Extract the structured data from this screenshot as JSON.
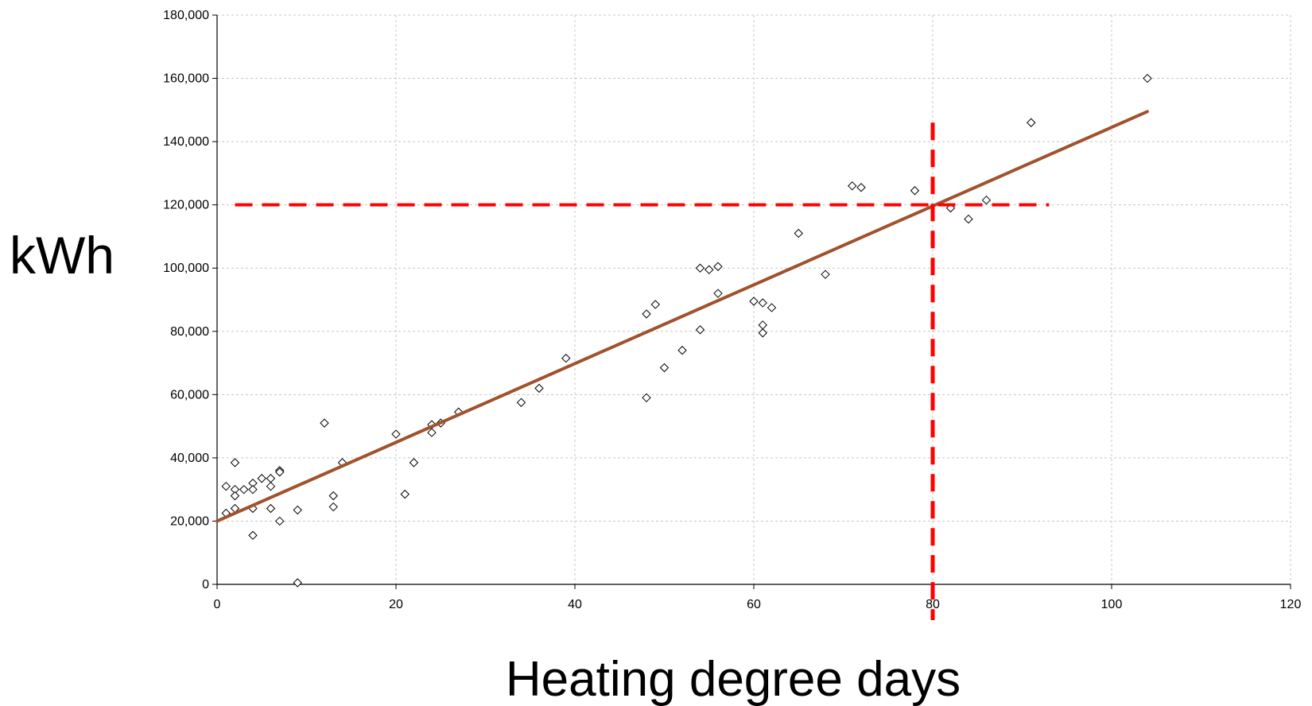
{
  "chart_data": {
    "type": "scatter",
    "title": "",
    "xlabel": "Heating degree days",
    "ylabel": "kWh",
    "xlim": [
      0,
      120
    ],
    "ylim": [
      0,
      180000
    ],
    "x_ticks": [
      0,
      20,
      40,
      60,
      80,
      100,
      120
    ],
    "x_tick_labels": [
      "0",
      "20",
      "40",
      "60",
      "80",
      "100",
      "120"
    ],
    "y_ticks": [
      0,
      20000,
      40000,
      60000,
      80000,
      100000,
      120000,
      140000,
      160000,
      180000
    ],
    "y_tick_labels": [
      "0",
      "20,000",
      "40,000",
      "60,000",
      "80,000",
      "100,000",
      "120,000",
      "140,000",
      "160,000",
      "180,000"
    ],
    "grid": true,
    "points": [
      {
        "x": 1,
        "y": 31000
      },
      {
        "x": 1,
        "y": 22500
      },
      {
        "x": 2,
        "y": 38500
      },
      {
        "x": 2,
        "y": 30000
      },
      {
        "x": 2,
        "y": 28000
      },
      {
        "x": 2,
        "y": 24000
      },
      {
        "x": 3,
        "y": 30000
      },
      {
        "x": 4,
        "y": 32000
      },
      {
        "x": 4,
        "y": 30000
      },
      {
        "x": 4,
        "y": 24000
      },
      {
        "x": 4,
        "y": 15500
      },
      {
        "x": 5,
        "y": 33500
      },
      {
        "x": 6,
        "y": 33500
      },
      {
        "x": 6,
        "y": 31000
      },
      {
        "x": 6,
        "y": 24000
      },
      {
        "x": 7,
        "y": 36000
      },
      {
        "x": 7,
        "y": 35500
      },
      {
        "x": 7,
        "y": 20000
      },
      {
        "x": 9,
        "y": 23500
      },
      {
        "x": 9,
        "y": 500
      },
      {
        "x": 12,
        "y": 51000
      },
      {
        "x": 13,
        "y": 28000
      },
      {
        "x": 13,
        "y": 24500
      },
      {
        "x": 14,
        "y": 38500
      },
      {
        "x": 20,
        "y": 47500
      },
      {
        "x": 21,
        "y": 28500
      },
      {
        "x": 22,
        "y": 38500
      },
      {
        "x": 24,
        "y": 50500
      },
      {
        "x": 24,
        "y": 48000
      },
      {
        "x": 25,
        "y": 51000
      },
      {
        "x": 27,
        "y": 54500
      },
      {
        "x": 34,
        "y": 57500
      },
      {
        "x": 36,
        "y": 62000
      },
      {
        "x": 39,
        "y": 71500
      },
      {
        "x": 48,
        "y": 85500
      },
      {
        "x": 48,
        "y": 59000
      },
      {
        "x": 49,
        "y": 88500
      },
      {
        "x": 50,
        "y": 68500
      },
      {
        "x": 52,
        "y": 74000
      },
      {
        "x": 54,
        "y": 100000
      },
      {
        "x": 54,
        "y": 80500
      },
      {
        "x": 55,
        "y": 99500
      },
      {
        "x": 56,
        "y": 100500
      },
      {
        "x": 56,
        "y": 92000
      },
      {
        "x": 60,
        "y": 89500
      },
      {
        "x": 61,
        "y": 89000
      },
      {
        "x": 61,
        "y": 82000
      },
      {
        "x": 61,
        "y": 79500
      },
      {
        "x": 62,
        "y": 87500
      },
      {
        "x": 65,
        "y": 111000
      },
      {
        "x": 68,
        "y": 98000
      },
      {
        "x": 71,
        "y": 126000
      },
      {
        "x": 72,
        "y": 125500
      },
      {
        "x": 78,
        "y": 124500
      },
      {
        "x": 82,
        "y": 119000
      },
      {
        "x": 84,
        "y": 115500
      },
      {
        "x": 86,
        "y": 121500
      },
      {
        "x": 91,
        "y": 146000
      },
      {
        "x": 104,
        "y": 160000
      }
    ],
    "trendline": {
      "x": [
        0,
        104
      ],
      "y": [
        20000,
        149500
      ],
      "color": "#a0522d"
    },
    "reference_lines": {
      "x": 80,
      "y": 120000,
      "color": "#ff0000",
      "style": "dashed"
    },
    "marker_color": "#000000",
    "grid_color": "#c8c8c8"
  }
}
